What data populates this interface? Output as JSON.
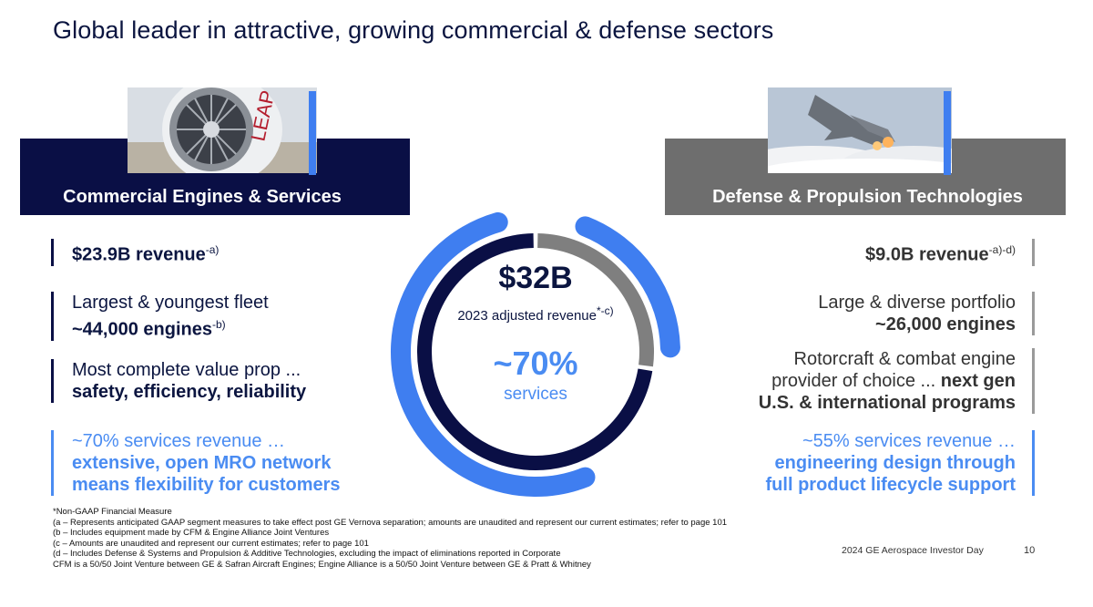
{
  "title": "Global leader in attractive, growing commercial & defense sectors",
  "left": {
    "header": "Commercial Engines & Services",
    "image_alt": "LEAP",
    "bullets": [
      {
        "lines": [
          {
            "b": "$23.9B revenue",
            "sup": "-a)"
          }
        ]
      },
      {
        "lines": [
          {
            "t": "Largest & youngest fleet"
          },
          {
            "b": "~44,000 engines",
            "sup": "-b)"
          }
        ]
      },
      {
        "lines": [
          {
            "t": "Most complete value prop ..."
          },
          {
            "b": "safety, efficiency, reliability"
          }
        ]
      },
      {
        "lines": [
          {
            "t": "~70% services revenue …"
          },
          {
            "b": "extensive, open MRO network"
          },
          {
            "b": "means flexibility for customers"
          }
        ]
      }
    ]
  },
  "right": {
    "header": "Defense & Propulsion Technologies",
    "bullets": [
      {
        "lines": [
          {
            "b": "$9.0B revenue",
            "sup": "-a)-d)"
          }
        ]
      },
      {
        "lines": [
          {
            "t": "Large & diverse portfolio"
          },
          {
            "b": "~26,000 engines"
          }
        ]
      },
      {
        "lines": [
          {
            "t": "Rotorcraft & combat engine"
          },
          {
            "t": "provider of choice ... ",
            "b": "next gen"
          },
          {
            "b": "U.S. & international programs"
          }
        ]
      },
      {
        "lines": [
          {
            "t": "~55% services revenue …"
          },
          {
            "b": "engineering design through"
          },
          {
            "b": "full product lifecycle support"
          }
        ]
      }
    ]
  },
  "center": {
    "total": "$32B",
    "total_label": "2023 adjusted revenue",
    "total_sup": "*-c)",
    "services_pct": "~70%",
    "services_label": "services"
  },
  "donut": {
    "commercial_share": 0.727,
    "services_share": 0.7,
    "colors": {
      "commercial": "#0a0f45",
      "defense": "#7f7f7f",
      "services": "#3f7ef0"
    }
  },
  "footnotes": [
    "*Non-GAAP Financial Measure",
    "(a – Represents anticipated GAAP segment measures to take effect post GE Vernova separation; amounts are unaudited and represent our current estimates; refer to page 101",
    "(b – Includes equipment made by CFM & Engine Alliance Joint Ventures",
    "(c – Amounts are unaudited and represent our current estimates; refer to page 101",
    "(d – Includes Defense & Systems and Propulsion & Additive Technologies, excluding the impact of eliminations reported in Corporate",
    "CFM is a 50/50 Joint Venture between GE & Safran Aircraft Engines; Engine Alliance is a 50/50 Joint Venture between GE & Pratt & Whitney"
  ],
  "footer": {
    "event": "2024 GE Aerospace Investor Day",
    "page": "10"
  }
}
